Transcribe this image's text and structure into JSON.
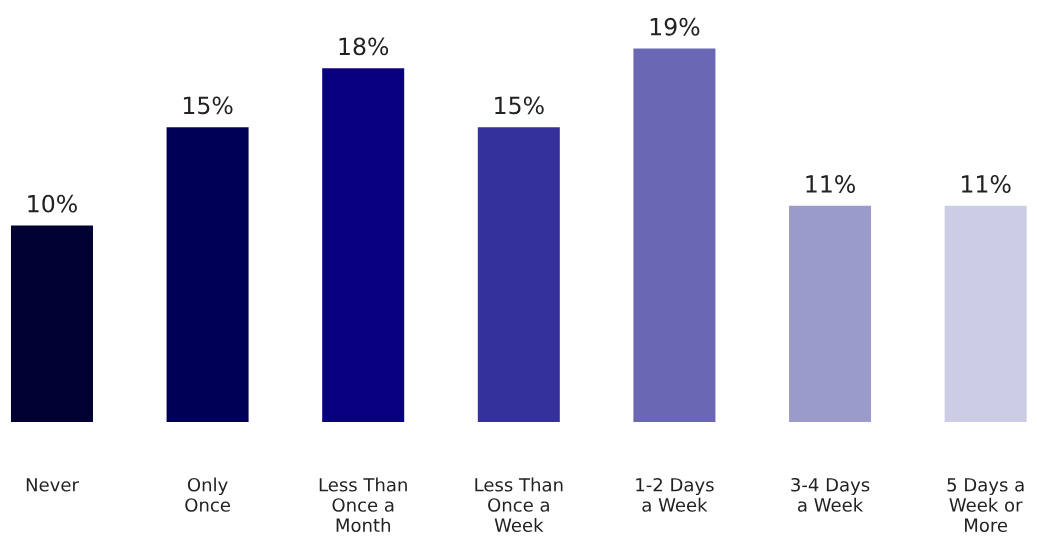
{
  "chart_data": {
    "type": "bar",
    "categories": [
      "Never",
      "Only\nOnce",
      "Less Than\nOnce a\nMonth",
      "Less Than\nOnce a\nWeek",
      "1-2 Days\na Week",
      "3-4 Days\na Week",
      "5 Days a\nWeek or\nMore"
    ],
    "values": [
      10,
      15,
      18,
      15,
      19,
      11,
      11
    ],
    "colors": [
      "#000033",
      "#000055",
      "#08007f",
      "#35319b",
      "#6a68b5",
      "#9b9bcb",
      "#cccce5"
    ],
    "value_labels": [
      "10%",
      "15%",
      "18%",
      "15%",
      "19%",
      "11%",
      "11%"
    ],
    "grid": false,
    "legend": false
  }
}
